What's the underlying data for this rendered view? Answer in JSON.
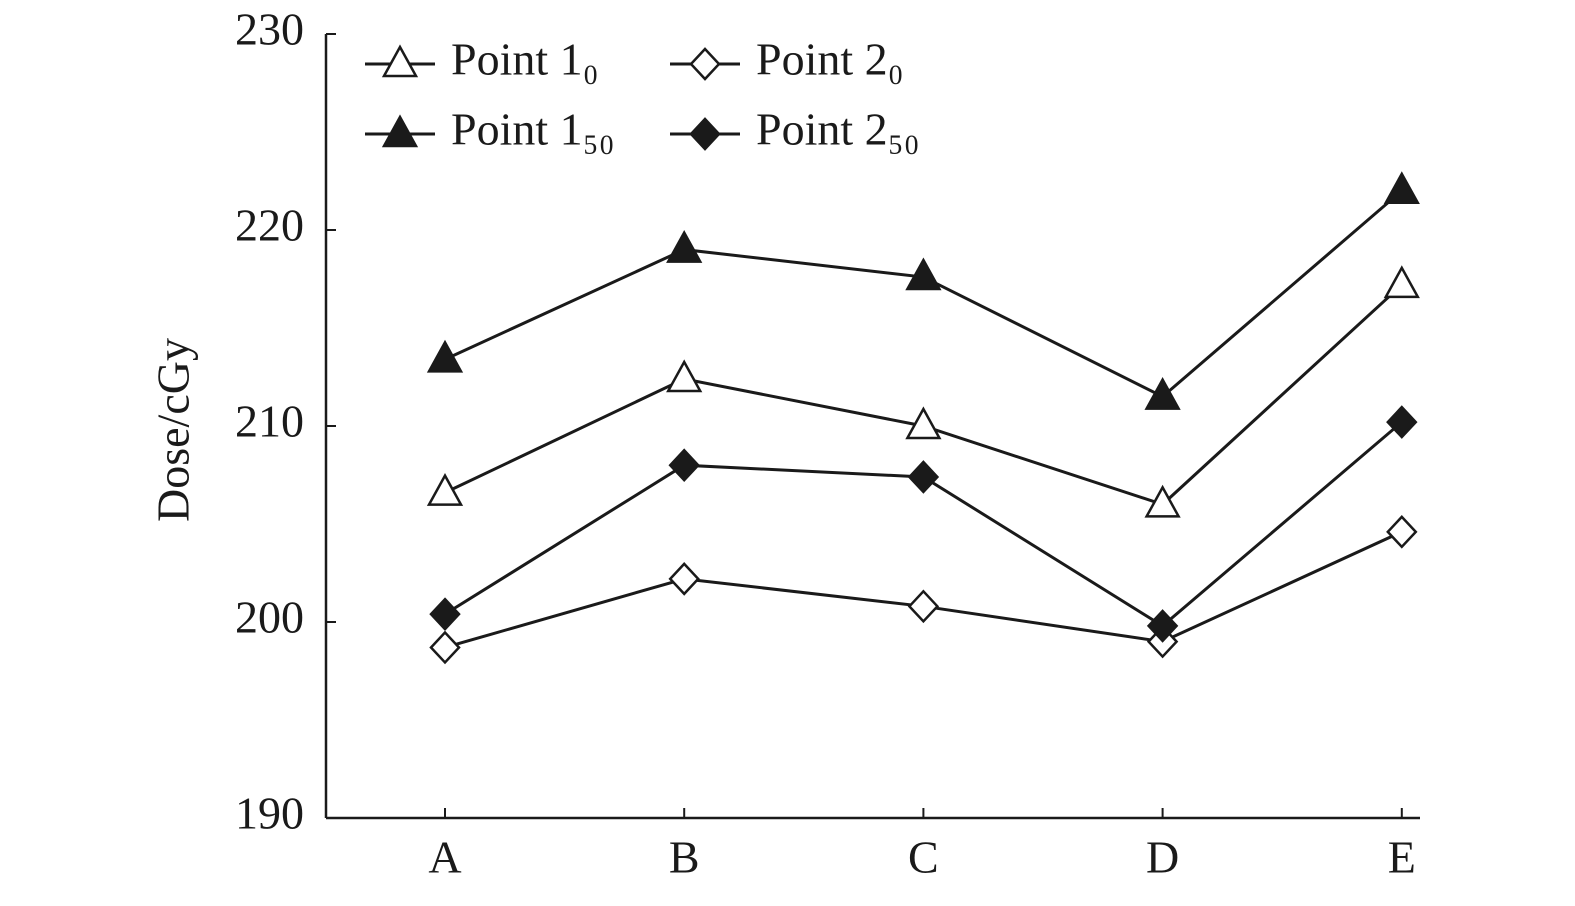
{
  "chart_data": {
    "type": "line",
    "y_label": "Dose/cGy",
    "categories": [
      "A",
      "B",
      "C",
      "D",
      "E"
    ],
    "series": [
      {
        "name": "Point 1₀",
        "color": "#1a1a1a",
        "marker": "triangle",
        "filled": false,
        "values": [
          206.6,
          212.4,
          210.0,
          206.0,
          217.2
        ]
      },
      {
        "name": "Point 2₀",
        "color": "#1a1a1a",
        "marker": "diamond",
        "filled": false,
        "values": [
          198.7,
          202.2,
          200.8,
          199.0,
          204.6
        ]
      },
      {
        "name": "Point 1₅₀",
        "color": "#1a1a1a",
        "marker": "triangle",
        "filled": true,
        "values": [
          213.4,
          219.0,
          217.6,
          211.5,
          222.0
        ]
      },
      {
        "name": "Point 2₅₀",
        "color": "#1a1a1a",
        "marker": "diamond",
        "filled": true,
        "values": [
          200.4,
          208.0,
          207.4,
          199.8,
          210.2
        ]
      }
    ],
    "ylim": [
      190,
      230
    ],
    "yticks": [
      190,
      200,
      210,
      220,
      230
    ],
    "grid": false,
    "legend": "top-left"
  }
}
